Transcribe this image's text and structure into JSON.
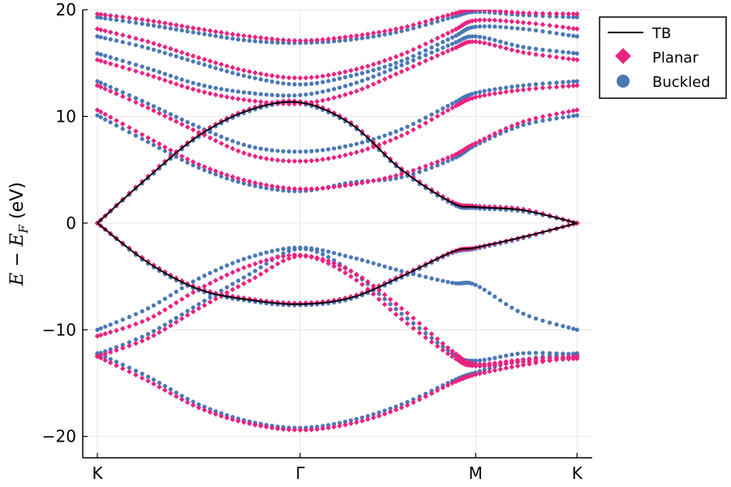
{
  "chart_data": {
    "type": "scatter",
    "title": "",
    "xlabel": "",
    "ylabel": {
      "E": "E",
      "minus": " − ",
      "E_F_base": "E",
      "E_F_sub": "F",
      "unit": " (eV)"
    },
    "ylim": [
      -22,
      20
    ],
    "yticks": [
      -20,
      -10,
      0,
      10,
      20
    ],
    "ytick_labels": [
      "−20",
      "−10",
      "0",
      "10",
      "20"
    ],
    "xlim": [
      -0.05,
      4.7
    ],
    "xticks": [
      0,
      2,
      3.73,
      4.73
    ],
    "xtick_labels": [
      "K",
      "Γ",
      "M",
      "K"
    ],
    "grid": true,
    "legend_position": "top-right-outside",
    "legend": [
      {
        "name": "TB",
        "kind": "line",
        "color": "#000000"
      },
      {
        "name": "Planar",
        "kind": "diamond",
        "color": "#e8227f"
      },
      {
        "name": "Buckled",
        "kind": "circle",
        "color": "#4a78b7"
      }
    ],
    "series": [
      {
        "name": "TB",
        "style": "line",
        "color": "#000000",
        "bands": [
          {
            "x": [
              0,
              0.5,
              1,
              1.5,
              2,
              2.5,
              3,
              3.5,
              3.73,
              4.2,
              4.73
            ],
            "y": [
              0,
              4.3,
              8.2,
              10.6,
              11.3,
              9.3,
              5.0,
              1.9,
              1.5,
              1.2,
              0
            ]
          },
          {
            "x": [
              0,
              0.5,
              1,
              1.5,
              2,
              2.5,
              3,
              3.5,
              3.73,
              4.2,
              4.73
            ],
            "y": [
              0,
              -3.7,
              -6.2,
              -7.2,
              -7.6,
              -7.0,
              -5.0,
              -2.7,
              -2.3,
              -1.3,
              0
            ]
          }
        ]
      },
      {
        "name": "Planar",
        "style": "diamond",
        "color": "#e8227f",
        "bands": [
          {
            "x": [
              0,
              0.5,
              1,
              1.5,
              2,
              2.5,
              3,
              3.5,
              3.73,
              4.2,
              4.73
            ],
            "y": [
              0,
              4.4,
              8.3,
              10.7,
              11.4,
              9.4,
              5.1,
              2.0,
              1.6,
              1.3,
              0
            ]
          },
          {
            "x": [
              0,
              0.5,
              1,
              1.5,
              2,
              2.5,
              3,
              3.5,
              3.73,
              4.2,
              4.73
            ],
            "y": [
              0,
              -3.6,
              -6.1,
              -7.1,
              -7.5,
              -6.9,
              -4.9,
              -2.7,
              -2.3,
              -1.3,
              0
            ]
          },
          {
            "x": [
              0,
              0.5,
              1,
              1.5,
              2,
              2.5,
              3,
              3.5,
              3.73,
              4.2,
              4.73
            ],
            "y": [
              -10.6,
              -9.0,
              -6.2,
              -4.0,
              -3.0,
              -4.5,
              -8.0,
              -12.0,
              -13.2,
              -12.8,
              -12.5
            ]
          },
          {
            "x": [
              0,
              0.5,
              1,
              1.5,
              2,
              2.5,
              3,
              3.5,
              3.73,
              4.2,
              4.73
            ],
            "y": [
              -12.5,
              -14.8,
              -17.3,
              -18.8,
              -19.4,
              -18.8,
              -17.3,
              -15.0,
              -14.2,
              -13.3,
              -12.5
            ]
          },
          {
            "x": [
              0,
              0.5,
              1,
              1.5,
              2,
              2.5,
              3,
              3.5,
              3.73,
              4.2,
              4.73
            ],
            "y": [
              -12.5,
              -10.8,
              -8.0,
              -5.4,
              -3.1,
              -5.0,
              -9.0,
              -12.5,
              -13.4,
              -13.0,
              -12.7
            ]
          },
          {
            "x": [
              0,
              0.5,
              1,
              1.5,
              2,
              2.5,
              3,
              3.5,
              3.73,
              4.2,
              4.73
            ],
            "y": [
              10.6,
              8.0,
              5.5,
              3.9,
              3.2,
              3.6,
              4.6,
              6.3,
              7.5,
              9.5,
              10.6
            ]
          },
          {
            "x": [
              0,
              0.5,
              1,
              1.5,
              2,
              2.5,
              3,
              3.5,
              3.73,
              4.2,
              4.73
            ],
            "y": [
              12.9,
              10.8,
              8.5,
              6.4,
              5.8,
              6.5,
              8.2,
              10.8,
              11.8,
              12.5,
              12.9
            ]
          },
          {
            "x": [
              0,
              0.5,
              1,
              1.5,
              2,
              2.5,
              3,
              3.5,
              3.73,
              4.2,
              4.73
            ],
            "y": [
              15.3,
              13.9,
              12.4,
              11.5,
              11.2,
              12.2,
              14.2,
              16.3,
              17.0,
              16.0,
              15.3
            ]
          },
          {
            "x": [
              0,
              0.5,
              1,
              1.5,
              2,
              2.5,
              3,
              3.5,
              3.73,
              4.2,
              4.73
            ],
            "y": [
              18.2,
              17.0,
              15.5,
              14.2,
              13.6,
              14.3,
              15.8,
              18.0,
              19.0,
              18.8,
              18.2
            ]
          },
          {
            "x": [
              0,
              0.5,
              1,
              1.5,
              2,
              2.5,
              3,
              3.5,
              3.73,
              4.2,
              4.73
            ],
            "y": [
              19.6,
              19.0,
              18.2,
              17.5,
              17.1,
              17.5,
              18.3,
              19.6,
              20.0,
              19.7,
              19.6
            ]
          }
        ]
      },
      {
        "name": "Buckled",
        "style": "circle",
        "color": "#4a78b7",
        "bands": [
          {
            "x": [
              0,
              0.5,
              1,
              1.5,
              2,
              2.5,
              3,
              3.5,
              3.73,
              4.2,
              4.73
            ],
            "y": [
              0,
              4.2,
              8.1,
              10.5,
              11.2,
              9.2,
              4.9,
              1.8,
              1.4,
              1.1,
              0
            ]
          },
          {
            "x": [
              0,
              0.5,
              1,
              1.5,
              2,
              2.5,
              3,
              3.5,
              3.73,
              4.2,
              4.73
            ],
            "y": [
              0,
              -3.8,
              -6.3,
              -7.3,
              -7.7,
              -7.1,
              -5.1,
              -2.8,
              -2.4,
              -1.4,
              0
            ]
          },
          {
            "x": [
              0,
              0.5,
              1,
              1.5,
              2,
              2.5,
              3,
              3.5,
              3.73,
              4.2,
              4.73
            ],
            "y": [
              -10.0,
              -8.0,
              -5.2,
              -3.2,
              -2.3,
              -3.2,
              -4.5,
              -5.6,
              -5.8,
              -8.5,
              -10.0
            ]
          },
          {
            "x": [
              0,
              0.5,
              1,
              1.5,
              2,
              2.5,
              3,
              3.5,
              3.73,
              4.2,
              4.73
            ],
            "y": [
              -12.2,
              -14.4,
              -17.0,
              -18.6,
              -19.2,
              -18.5,
              -17.0,
              -14.8,
              -14.0,
              -12.8,
              -12.2
            ]
          },
          {
            "x": [
              0,
              0.5,
              1,
              1.5,
              2,
              2.5,
              3,
              3.5,
              3.73,
              4.2,
              4.73
            ],
            "y": [
              -12.3,
              -10.4,
              -7.6,
              -4.8,
              -2.4,
              -4.5,
              -8.5,
              -12.2,
              -12.9,
              -12.2,
              -12.3
            ]
          },
          {
            "x": [
              0,
              0.5,
              1,
              1.5,
              2,
              2.5,
              3,
              3.5,
              3.73,
              4.2,
              4.73
            ],
            "y": [
              10.1,
              7.6,
              5.2,
              3.6,
              3.0,
              3.8,
              4.3,
              6.0,
              7.3,
              9.2,
              10.1
            ]
          },
          {
            "x": [
              0,
              0.5,
              1,
              1.5,
              2,
              2.5,
              3,
              3.5,
              3.73,
              4.2,
              4.73
            ],
            "y": [
              13.3,
              11.2,
              9.0,
              7.2,
              6.7,
              7.3,
              8.8,
              11.2,
              12.2,
              12.9,
              13.3
            ]
          },
          {
            "x": [
              0,
              0.5,
              1,
              1.5,
              2,
              2.5,
              3,
              3.5,
              3.73,
              4.2,
              4.73
            ],
            "y": [
              15.9,
              14.5,
              13.0,
              12.2,
              12.0,
              13.0,
              14.8,
              16.8,
              17.5,
              16.5,
              15.9
            ]
          },
          {
            "x": [
              0,
              0.5,
              1,
              1.5,
              2,
              2.5,
              3,
              3.5,
              3.73,
              4.2,
              4.73
            ],
            "y": [
              17.5,
              16.4,
              15.0,
              13.7,
              13.0,
              13.8,
              15.2,
              17.4,
              18.4,
              18.2,
              17.5
            ]
          },
          {
            "x": [
              0,
              0.5,
              1,
              1.5,
              2,
              2.5,
              3,
              3.5,
              3.73,
              4.2,
              4.73
            ],
            "y": [
              19.3,
              18.6,
              17.8,
              17.1,
              16.9,
              17.2,
              18.0,
              19.3,
              19.8,
              19.5,
              19.3
            ]
          }
        ]
      }
    ]
  }
}
